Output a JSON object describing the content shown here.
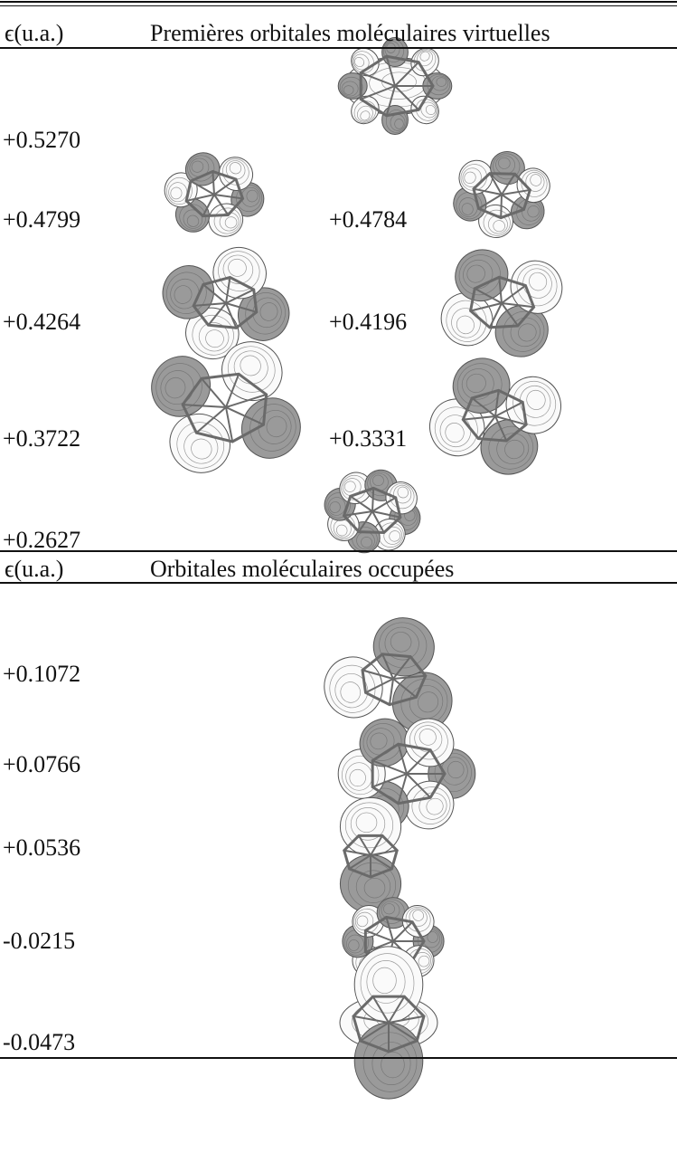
{
  "sections": [
    {
      "header": {
        "energy": "ϵ(u.a.)",
        "title": "Premières orbitales moléculaires virtuelles"
      },
      "rows": [
        [
          "+0.5270"
        ],
        [
          "+0.4799",
          "+0.4784"
        ],
        [
          "+0.4264",
          "+0.4196"
        ],
        [
          "+0.3722",
          "+0.3331"
        ],
        [
          "+0.2627"
        ]
      ]
    },
    {
      "header": {
        "energy": "ϵ(u.a.)",
        "title": "Orbitales moléculaires occupées"
      },
      "rows": [
        [
          "+0.1072"
        ],
        [
          "+0.0766"
        ],
        [
          "+0.0536"
        ],
        [
          "-0.0215"
        ],
        [
          "-0.0473"
        ]
      ]
    }
  ]
}
